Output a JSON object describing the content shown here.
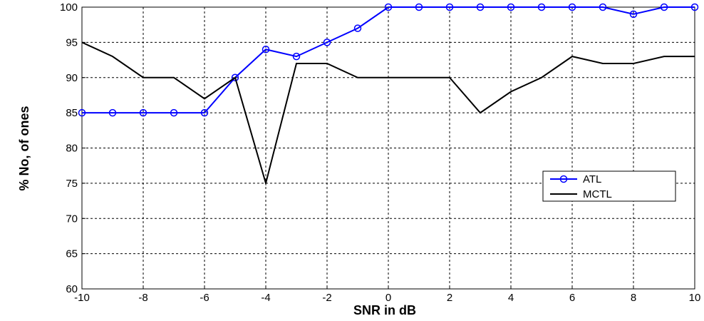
{
  "chart_data": {
    "type": "line",
    "xlabel": "SNR in dB",
    "ylabel": "% No, of ones",
    "x": [
      -10,
      -9,
      -8,
      -7,
      -6,
      -5,
      -4,
      -3,
      -2,
      -1,
      0,
      1,
      2,
      3,
      4,
      5,
      6,
      7,
      8,
      9,
      10
    ],
    "series": [
      {
        "name": "ATL",
        "color": "#0000ff",
        "marker": "circle",
        "values": [
          85,
          85,
          85,
          85,
          85,
          90,
          94,
          93,
          95,
          97,
          100,
          100,
          100,
          100,
          100,
          100,
          100,
          100,
          99,
          100,
          100
        ]
      },
      {
        "name": "MCTL",
        "color": "#000000",
        "values": [
          95,
          93,
          90,
          90,
          87,
          90,
          75,
          92,
          92,
          90,
          90,
          90,
          90,
          85,
          88,
          90,
          93,
          92,
          92,
          93,
          93
        ]
      }
    ],
    "xlim": [
      -10,
      10
    ],
    "xticks": [
      -10,
      -8,
      -6,
      -4,
      -2,
      0,
      2,
      4,
      6,
      8,
      10
    ],
    "ylim": [
      60,
      100
    ],
    "yticks": [
      60,
      65,
      70,
      75,
      80,
      85,
      90,
      95,
      100
    ],
    "grid": true,
    "legend": "right"
  }
}
